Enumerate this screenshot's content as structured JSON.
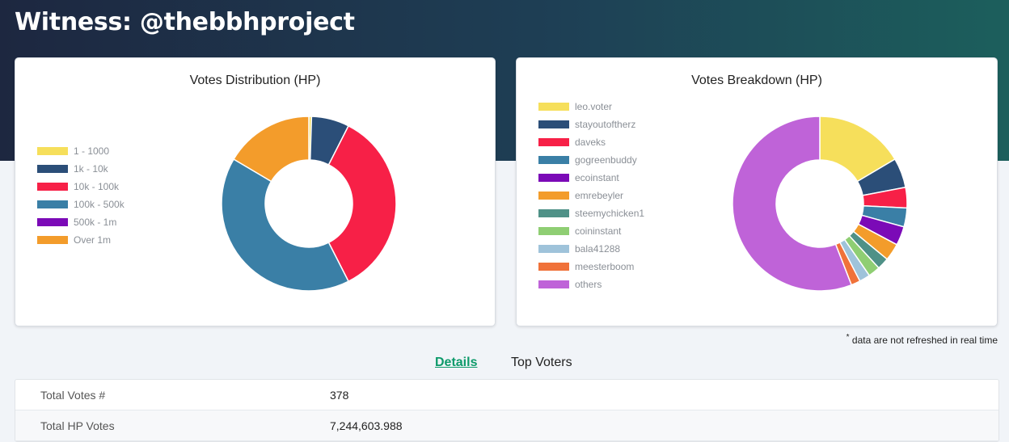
{
  "header": {
    "title": "Witness: @thebbhproject"
  },
  "distribution_chart": {
    "title": "Votes Distribution (HP)",
    "legend": [
      {
        "label": "1 - 1000",
        "color": "#f6df5b"
      },
      {
        "label": "1k - 10k",
        "color": "#2b4e78"
      },
      {
        "label": "10k - 100k",
        "color": "#f72047"
      },
      {
        "label": "100k - 500k",
        "color": "#3a7fa6"
      },
      {
        "label": "500k - 1m",
        "color": "#7b0ab7"
      },
      {
        "label": "Over 1m",
        "color": "#f39c2b"
      }
    ]
  },
  "breakdown_chart": {
    "title": "Votes Breakdown (HP)",
    "legend": [
      {
        "label": "leo.voter",
        "color": "#f6df5b"
      },
      {
        "label": "stayoutoftherz",
        "color": "#2b4e78"
      },
      {
        "label": "daveks",
        "color": "#f72047"
      },
      {
        "label": "gogreenbuddy",
        "color": "#3a7fa6"
      },
      {
        "label": "ecoinstant",
        "color": "#7b0ab7"
      },
      {
        "label": "emrebeyler",
        "color": "#f39c2b"
      },
      {
        "label": "steemychicken1",
        "color": "#4f9187"
      },
      {
        "label": "coininstant",
        "color": "#8fce73"
      },
      {
        "label": "bala41288",
        "color": "#9fc3da"
      },
      {
        "label": "meesterboom",
        "color": "#f0723a"
      },
      {
        "label": "others",
        "color": "#bf63d8"
      }
    ]
  },
  "chart_data": [
    {
      "type": "pie",
      "title": "Votes Distribution (HP)",
      "categories": [
        "1 - 1000",
        "1k - 10k",
        "10k - 100k",
        "100k - 500k",
        "500k - 1m",
        "Over 1m"
      ],
      "values": [
        0.5,
        7,
        35,
        41,
        0,
        16.5
      ]
    },
    {
      "type": "pie",
      "title": "Votes Breakdown (HP)",
      "categories": [
        "leo.voter",
        "stayoutoftherz",
        "daveks",
        "gogreenbuddy",
        "ecoinstant",
        "emrebeyler",
        "steemychicken1",
        "coininstant",
        "bala41288",
        "meesterboom",
        "others"
      ],
      "values": [
        16.5,
        5.5,
        3.8,
        3.5,
        3.5,
        3.2,
        2.2,
        2.2,
        2.0,
        1.7,
        55.9
      ]
    }
  ],
  "footnote": {
    "marker": "*",
    "text": " data are not refreshed in real time"
  },
  "tabs": {
    "details": "Details",
    "top_voters": "Top Voters"
  },
  "details": [
    {
      "label": "Total Votes #",
      "value": "378"
    },
    {
      "label": "Total HP Votes",
      "value": "7,244,603.988"
    }
  ]
}
